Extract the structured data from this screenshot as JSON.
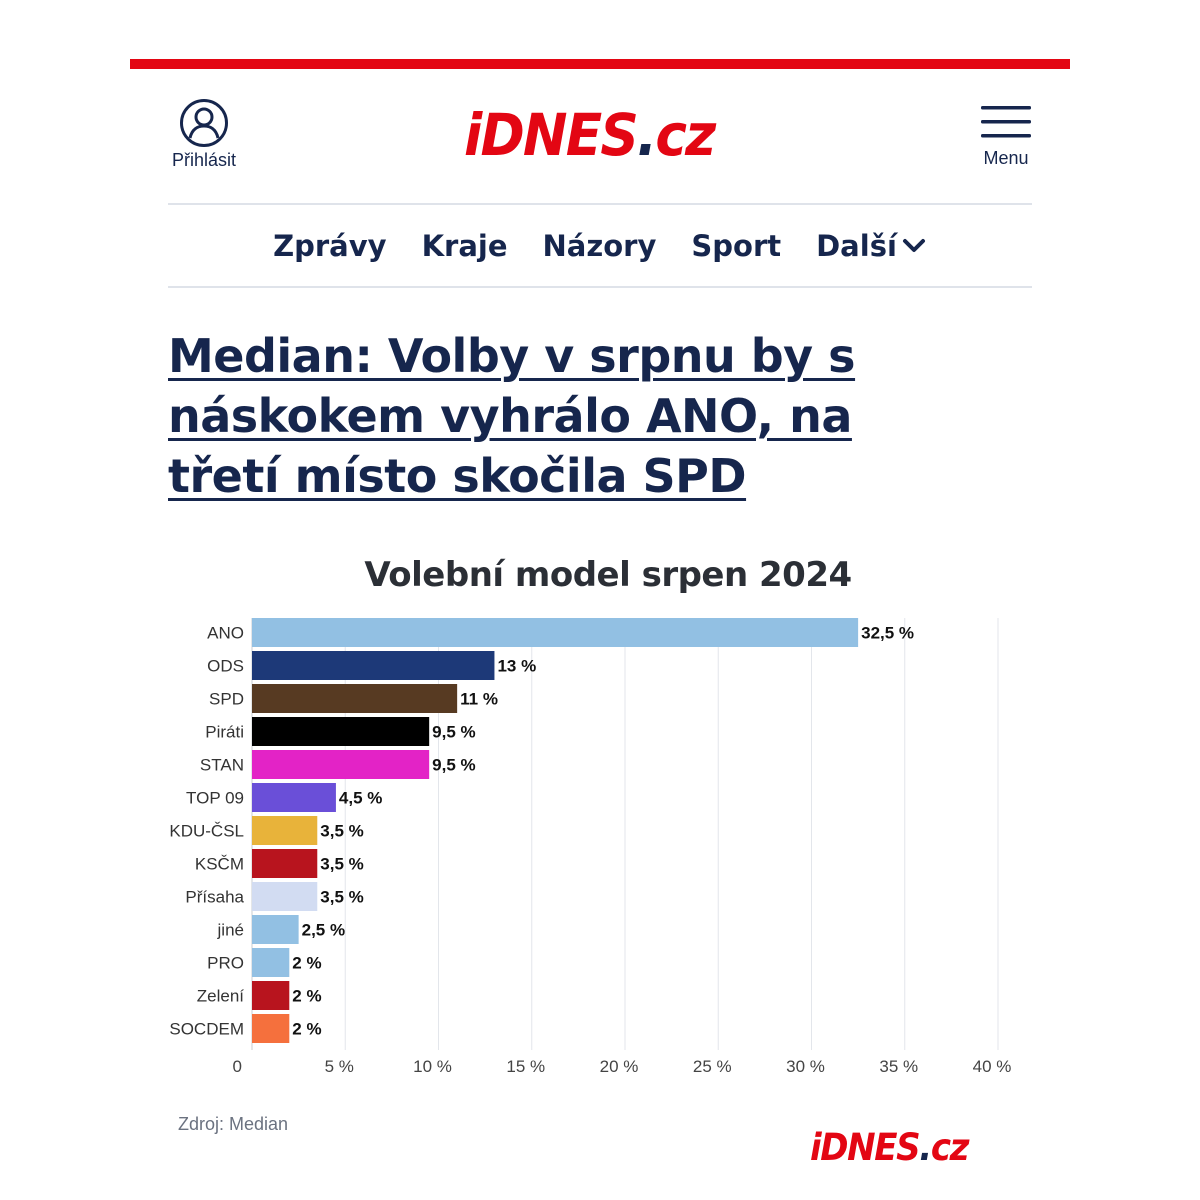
{
  "header": {
    "login_label": "Přihlásit",
    "menu_label": "Menu",
    "logo": {
      "brand": "iDNES",
      "dot": ".",
      "tld": "cz"
    }
  },
  "nav": {
    "items": [
      "Zprávy",
      "Kraje",
      "Názory",
      "Sport",
      "Další"
    ]
  },
  "article": {
    "headline": "Median: Volby v srpnu by s náskokem vyhrálo ANO, na třetí místo skočila SPD"
  },
  "colors": {
    "brand_red": "#e30613",
    "navy": "#16264d"
  },
  "chart_data": {
    "type": "bar",
    "orientation": "horizontal",
    "title": "Volební model srpen 2024",
    "categories": [
      "ANO",
      "ODS",
      "SPD",
      "Piráti",
      "STAN",
      "TOP 09",
      "KDU-ČSL",
      "KSČM",
      "Přísaha",
      "jiné",
      "PRO",
      "Zelení",
      "SOCDEM"
    ],
    "values": [
      32.5,
      13,
      11,
      9.5,
      9.5,
      4.5,
      3.5,
      3.5,
      3.5,
      2.5,
      2,
      2,
      2
    ],
    "value_labels": [
      "32,5 %",
      "13 %",
      "11 %",
      "9,5 %",
      "9,5 %",
      "4,5 %",
      "3,5 %",
      "3,5 %",
      "3,5 %",
      "2,5 %",
      "2 %",
      "2 %",
      "2 %"
    ],
    "colors": [
      "#92c0e3",
      "#1d3978",
      "#573a22",
      "#000000",
      "#e323c6",
      "#6a4fd8",
      "#e8b33a",
      "#b8141e",
      "#d2dcf2",
      "#92c0e3",
      "#92c0e3",
      "#b8141e",
      "#f5703d"
    ],
    "xlim": [
      0,
      40
    ],
    "xticks": [
      0,
      5,
      10,
      15,
      20,
      25,
      30,
      35,
      40
    ],
    "xtick_labels": [
      "0",
      "5 %",
      "10 %",
      "15 %",
      "20 %",
      "25 %",
      "30 %",
      "35 %",
      "40 %"
    ],
    "grid": true,
    "legend": "none"
  },
  "source": "Zdroj: Median",
  "footer_logo": {
    "brand": "iDNES",
    "dot": ".",
    "tld": "cz"
  }
}
